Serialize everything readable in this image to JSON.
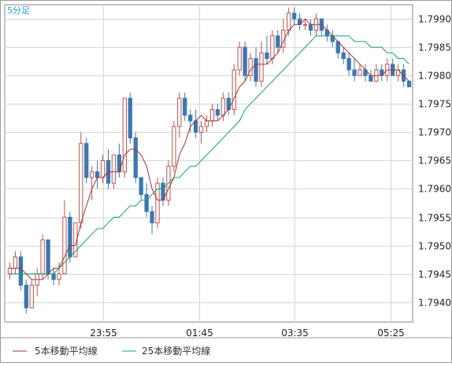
{
  "chart_data": {
    "type": "candlestick",
    "timeframe_label": "5分足",
    "x_tick_labels": [
      "23:55",
      "01:45",
      "03:35",
      "05:25"
    ],
    "y_ticks": [
      1.794,
      1.7945,
      1.795,
      1.7955,
      1.796,
      1.7965,
      1.797,
      1.7975,
      1.798,
      1.7985,
      1.799
    ],
    "ylim": [
      1.79365,
      1.79925
    ],
    "grid": true,
    "legend_position": "bottom-left",
    "colors": {
      "up": "#c0504d",
      "down": "#3b78b0",
      "ma5": "#a83232",
      "ma25": "#1a9a7a",
      "grid": "#d6d6d6"
    },
    "series": [
      {
        "name": "5本移動平均線",
        "color": "#a83232"
      },
      {
        "name": "25本移動平均線",
        "color": "#1a9a7a"
      }
    ],
    "candles": [
      [
        1.7945,
        1.7947,
        1.7944,
        1.7946
      ],
      [
        1.7946,
        1.7949,
        1.7945,
        1.7948
      ],
      [
        1.7948,
        1.7949,
        1.7942,
        1.7943
      ],
      [
        1.7943,
        1.7944,
        1.7938,
        1.7939
      ],
      [
        1.7939,
        1.7944,
        1.7939,
        1.7943
      ],
      [
        1.7943,
        1.7946,
        1.7941,
        1.7945
      ],
      [
        1.7945,
        1.7952,
        1.7944,
        1.7951
      ],
      [
        1.7951,
        1.7951,
        1.7944,
        1.7945
      ],
      [
        1.7945,
        1.7946,
        1.7943,
        1.7944
      ],
      [
        1.7944,
        1.7947,
        1.7943,
        1.7945
      ],
      [
        1.7945,
        1.7958,
        1.7945,
        1.7955
      ],
      [
        1.7955,
        1.7956,
        1.7947,
        1.7948
      ],
      [
        1.7948,
        1.7954,
        1.7948,
        1.7954
      ],
      [
        1.7954,
        1.797,
        1.7953,
        1.7968
      ],
      [
        1.7968,
        1.7969,
        1.7961,
        1.7962
      ],
      [
        1.7962,
        1.7964,
        1.7958,
        1.7963
      ],
      [
        1.7963,
        1.7965,
        1.796,
        1.7962
      ],
      [
        1.7962,
        1.7966,
        1.7961,
        1.7965
      ],
      [
        1.7965,
        1.7967,
        1.796,
        1.7961
      ],
      [
        1.7961,
        1.7966,
        1.796,
        1.7966
      ],
      [
        1.7966,
        1.7968,
        1.7962,
        1.7963
      ],
      [
        1.7963,
        1.7976,
        1.7962,
        1.7976
      ],
      [
        1.7976,
        1.7977,
        1.7968,
        1.7969
      ],
      [
        1.7969,
        1.797,
        1.7961,
        1.7962
      ],
      [
        1.7962,
        1.7962,
        1.7958,
        1.7959
      ],
      [
        1.7959,
        1.7961,
        1.7955,
        1.7956
      ],
      [
        1.7956,
        1.7957,
        1.7952,
        1.7954
      ],
      [
        1.7954,
        1.7962,
        1.7953,
        1.7961
      ],
      [
        1.7961,
        1.7962,
        1.7957,
        1.7958
      ],
      [
        1.7958,
        1.7965,
        1.7957,
        1.7964
      ],
      [
        1.7964,
        1.7972,
        1.7963,
        1.7971
      ],
      [
        1.7971,
        1.7977,
        1.7969,
        1.7976
      ],
      [
        1.7976,
        1.7977,
        1.7972,
        1.7973
      ],
      [
        1.7973,
        1.7974,
        1.797,
        1.7972
      ],
      [
        1.7972,
        1.7974,
        1.7969,
        1.797
      ],
      [
        1.797,
        1.7972,
        1.7968,
        1.7971
      ],
      [
        1.7971,
        1.7973,
        1.797,
        1.7972
      ],
      [
        1.7972,
        1.7975,
        1.7971,
        1.7974
      ],
      [
        1.7974,
        1.7975,
        1.7972,
        1.7973
      ],
      [
        1.7973,
        1.7977,
        1.7972,
        1.7976
      ],
      [
        1.7976,
        1.7977,
        1.7973,
        1.7974
      ],
      [
        1.7974,
        1.7982,
        1.7973,
        1.7981
      ],
      [
        1.7981,
        1.7986,
        1.798,
        1.7985
      ],
      [
        1.7985,
        1.7986,
        1.7979,
        1.798
      ],
      [
        1.798,
        1.7984,
        1.7979,
        1.7983
      ],
      [
        1.7983,
        1.7985,
        1.7978,
        1.7979
      ],
      [
        1.7979,
        1.7986,
        1.7978,
        1.7984
      ],
      [
        1.7984,
        1.7987,
        1.7982,
        1.7983
      ],
      [
        1.7983,
        1.7988,
        1.7982,
        1.7987
      ],
      [
        1.7987,
        1.7988,
        1.7984,
        1.7985
      ],
      [
        1.7985,
        1.799,
        1.7984,
        1.7988
      ],
      [
        1.7988,
        1.7992,
        1.7987,
        1.7991
      ],
      [
        1.7991,
        1.7992,
        1.7989,
        1.799
      ],
      [
        1.799,
        1.7991,
        1.7988,
        1.7989
      ],
      [
        1.7989,
        1.799,
        1.7988,
        1.7989
      ],
      [
        1.7989,
        1.799,
        1.7987,
        1.7988
      ],
      [
        1.7988,
        1.7991,
        1.7987,
        1.799
      ],
      [
        1.799,
        1.799,
        1.7987,
        1.7988
      ],
      [
        1.7988,
        1.7989,
        1.7986,
        1.7987
      ],
      [
        1.7987,
        1.7988,
        1.7985,
        1.7986
      ],
      [
        1.7986,
        1.7986,
        1.7983,
        1.7984
      ],
      [
        1.7984,
        1.7985,
        1.7982,
        1.7983
      ],
      [
        1.7983,
        1.7984,
        1.798,
        1.7981
      ],
      [
        1.7981,
        1.7983,
        1.7979,
        1.798
      ],
      [
        1.798,
        1.7982,
        1.798,
        1.7981
      ],
      [
        1.7981,
        1.7982,
        1.7979,
        1.798
      ],
      [
        1.798,
        1.7981,
        1.7979,
        1.7979
      ],
      [
        1.7979,
        1.7982,
        1.7979,
        1.7981
      ],
      [
        1.7981,
        1.7982,
        1.7979,
        1.798
      ],
      [
        1.798,
        1.7983,
        1.7979,
        1.7982
      ],
      [
        1.7982,
        1.7983,
        1.798,
        1.798
      ],
      [
        1.798,
        1.7982,
        1.7979,
        1.7981
      ],
      [
        1.7981,
        1.7982,
        1.7978,
        1.7979
      ],
      [
        1.7979,
        1.7979,
        1.7978,
        1.7978
      ]
    ],
    "ma5": [
      1.7946,
      1.7946,
      1.7946,
      1.7945,
      1.7944,
      1.7944,
      1.7944,
      1.7945,
      1.7946,
      1.7946,
      1.7948,
      1.795,
      1.795,
      1.7954,
      1.7957,
      1.796,
      1.7962,
      1.7962,
      1.7963,
      1.7963,
      1.7963,
      1.7966,
      1.7967,
      1.7967,
      1.7966,
      1.7964,
      1.796,
      1.7958,
      1.7958,
      1.796,
      1.7962,
      1.7966,
      1.7968,
      1.7971,
      1.7972,
      1.7973,
      1.7972,
      1.7972,
      1.7972,
      1.7973,
      1.7974,
      1.7976,
      1.7978,
      1.7979,
      1.7981,
      1.7982,
      1.7982,
      1.7982,
      1.7983,
      1.7984,
      1.7986,
      1.7988,
      1.7989,
      1.7989,
      1.799,
      1.7989,
      1.7989,
      1.7989,
      1.7988,
      1.7987,
      1.7986,
      1.7985,
      1.7984,
      1.7983,
      1.7982,
      1.7981,
      1.798,
      1.798,
      1.798,
      1.7981,
      1.7981,
      1.7981,
      1.798,
      1.7979
    ],
    "ma25": [
      1.7945,
      1.7945,
      1.7945,
      1.7945,
      1.7945,
      1.7945,
      1.7945,
      1.7945,
      1.7945,
      1.7946,
      1.7947,
      1.7948,
      1.7949,
      1.795,
      1.7951,
      1.7952,
      1.7953,
      1.7953,
      1.7954,
      1.7955,
      1.7955,
      1.7956,
      1.7957,
      1.7957,
      1.7958,
      1.7958,
      1.7959,
      1.796,
      1.796,
      1.7961,
      1.7962,
      1.7962,
      1.7963,
      1.7964,
      1.7964,
      1.7965,
      1.7966,
      1.7967,
      1.7968,
      1.7969,
      1.797,
      1.7971,
      1.7972,
      1.7974,
      1.7975,
      1.7976,
      1.7977,
      1.7978,
      1.7979,
      1.798,
      1.7981,
      1.7982,
      1.7983,
      1.7984,
      1.7985,
      1.7986,
      1.7987,
      1.7987,
      1.7987,
      1.7987,
      1.7987,
      1.7987,
      1.7987,
      1.7986,
      1.7986,
      1.7986,
      1.7985,
      1.7985,
      1.7985,
      1.7984,
      1.7984,
      1.7983,
      1.7983,
      1.7982
    ]
  }
}
